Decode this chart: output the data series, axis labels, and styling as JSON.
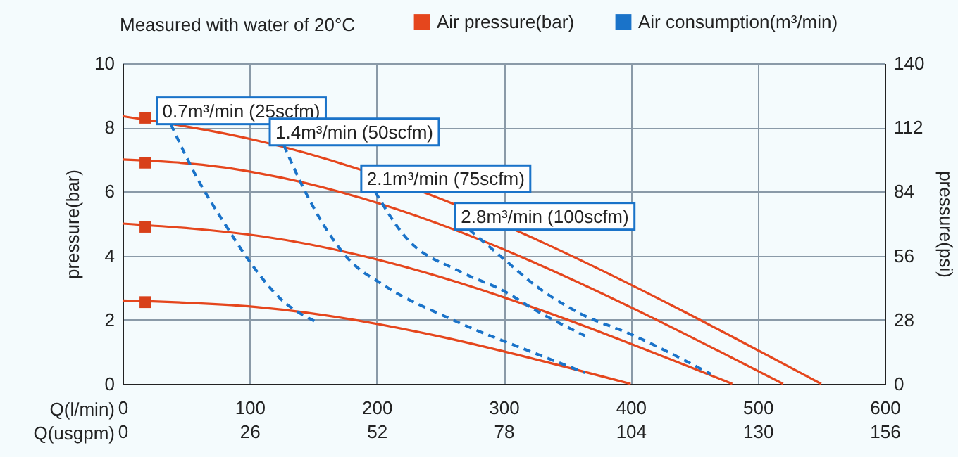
{
  "chart_data": {
    "type": "line",
    "annotations": [
      "Measured with water of 20°C",
      {
        "text": "0.7m³/min (25scfm)",
        "x": 38,
        "y": 8.1
      },
      {
        "text": "1.4m³/min (50scfm)",
        "x": 127,
        "y": 7.44
      },
      {
        "text": "2.1m³/min (75scfm)",
        "x": 199,
        "y": 5.98
      },
      {
        "text": "2.8m³/min (100scfm)",
        "x": 273,
        "y": 4.81
      }
    ],
    "xlabel": "Q(l/min)",
    "x2label": "Q(usgpm)",
    "ylabel": "pressure(bar)",
    "y2label": "pressure(psi)",
    "xlim": [
      0,
      600
    ],
    "xticks": [
      0,
      100,
      200,
      300,
      400,
      500,
      600
    ],
    "x2lim": [
      0,
      156
    ],
    "x2ticks": [
      0,
      26,
      52,
      78,
      104,
      130,
      156
    ],
    "ylim": [
      0,
      10
    ],
    "yticks": [
      0,
      2,
      4,
      6,
      8,
      10
    ],
    "y2lim": [
      0,
      140
    ],
    "y2ticks": [
      0,
      28,
      56,
      84,
      112,
      140
    ],
    "grid": true,
    "legend": "top",
    "series": [
      {
        "name": "Air pressure(bar)",
        "color": "#e5461d",
        "line_style": "solid",
        "x": [
          0,
          105,
          550
        ],
        "values": [
          8.35,
          7.6,
          0
        ]
      },
      {
        "color": "#e5461d",
        "line_style": "solid",
        "x": [
          0,
          80,
          110,
          520
        ],
        "values": [
          7.0,
          6.75,
          6.55,
          0
        ]
      },
      {
        "color": "#e5461d",
        "line_style": "solid",
        "x": [
          0,
          110,
          480
        ],
        "values": [
          5.0,
          4.6,
          0
        ]
      },
      {
        "color": "#e5461d",
        "line_style": "solid",
        "x": [
          0,
          105,
          400
        ],
        "values": [
          2.6,
          2.4,
          0
        ]
      },
      {
        "type": "scatter",
        "marker": "square",
        "color": "#d8401a",
        "x": [
          18,
          18,
          18,
          18
        ],
        "values": [
          8.3,
          6.9,
          4.9,
          2.55
        ]
      },
      {
        "name": "Air consumption(m³/min)",
        "color": "#1a73c9",
        "line_style": "dashed",
        "x": [
          38,
          59,
          81,
          98,
          125,
          151
        ],
        "values": [
          8.1,
          6.4,
          4.96,
          3.93,
          2.63,
          1.96
        ]
      },
      {
        "color": "#1a73c9",
        "line_style": "dashed",
        "x": [
          127,
          144,
          177,
          206,
          258,
          325,
          364
        ],
        "values": [
          7.44,
          5.98,
          3.93,
          3.07,
          2.03,
          0.95,
          0.35
        ]
      },
      {
        "color": "#1a73c9",
        "line_style": "dashed",
        "x": [
          199,
          221,
          266,
          300,
          325,
          364
        ],
        "values": [
          5.98,
          4.66,
          3.5,
          2.9,
          2.3,
          1.5
        ]
      },
      {
        "color": "#1a73c9",
        "line_style": "dashed",
        "x": [
          273,
          300,
          325,
          360,
          400,
          463
        ],
        "values": [
          4.81,
          3.9,
          3.07,
          2.2,
          1.55,
          0.31
        ]
      }
    ]
  }
}
